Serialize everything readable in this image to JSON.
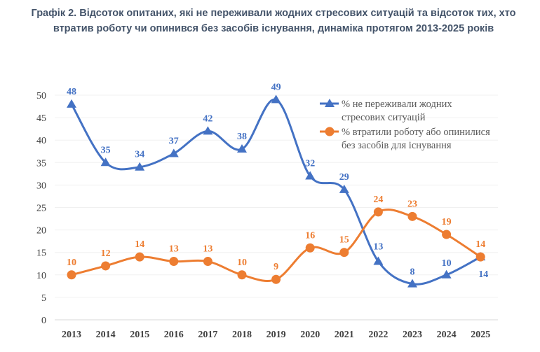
{
  "chart_data": {
    "type": "line",
    "title": "Графік 2. Відсоток опитаних, які не переживали жодних стресових ситуацій та відсоток тих, хто втратив роботу чи опинився без засобів існування, динаміка протягом 2013-2025 років",
    "categories": [
      "2013",
      "2014",
      "2015",
      "2016",
      "2017",
      "2018",
      "2019",
      "2020",
      "2021",
      "2022",
      "2023",
      "2024",
      "2025"
    ],
    "ylim": [
      0,
      50
    ],
    "yticks": [
      0,
      5,
      10,
      15,
      20,
      25,
      30,
      35,
      40,
      45,
      50
    ],
    "grid": true,
    "legend_position": "top-right",
    "series": [
      {
        "name": "% не переживали жодних стресових ситуацій",
        "legend_lines": [
          "% не переживали жодних",
          "стресових ситуацій"
        ],
        "color": "#4472C4",
        "marker": "triangle",
        "values": [
          48,
          35,
          34,
          37,
          42,
          38,
          49,
          32,
          29,
          13,
          8,
          10,
          14
        ]
      },
      {
        "name": "% втратили роботу або опинилися без засобів для існування",
        "legend_lines": [
          "% втратили роботу або опинилися",
          "без засобів для існування"
        ],
        "color": "#ED7D31",
        "marker": "circle",
        "values": [
          10,
          12,
          14,
          13,
          13,
          10,
          9,
          16,
          15,
          24,
          23,
          19,
          14
        ]
      }
    ]
  }
}
